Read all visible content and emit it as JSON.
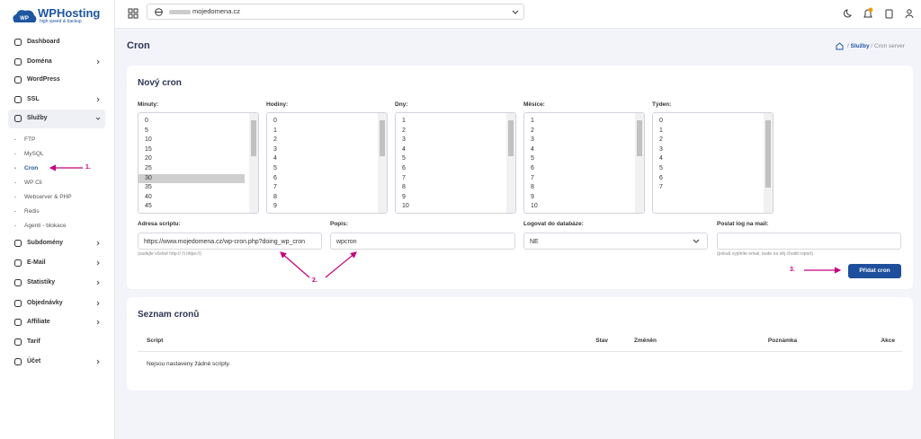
{
  "logo": {
    "title": "WPHosting",
    "tagline": "high speed & backup"
  },
  "sidebar": {
    "items": [
      "Dashboard",
      "Doména",
      "WordPress",
      "SSL",
      "Služby"
    ],
    "subitems": [
      "FTP",
      "MySQL",
      "Cron",
      "WP Cli",
      "Webserver & PHP",
      "Redis",
      "Agenti - blokace"
    ],
    "items_after": [
      "Subdomény",
      "E-Mail",
      "Statistiky",
      "Objednávky",
      "Affiliate",
      "Tarif",
      "Účet"
    ]
  },
  "topbar": {
    "domain": "mojedomena.cz"
  },
  "header": {
    "title": "Cron",
    "breadcrumb": [
      "Služby",
      "Cron server"
    ]
  },
  "form": {
    "title": "Nový cron",
    "lists": [
      {
        "label": "Minuty:",
        "options": [
          0,
          5,
          10,
          15,
          20,
          25,
          30,
          35,
          40,
          45
        ]
      },
      {
        "label": "Hodiny:",
        "options": [
          0,
          1,
          2,
          3,
          4,
          5,
          6,
          7,
          8,
          9
        ]
      },
      {
        "label": "Dny:",
        "options": [
          1,
          2,
          3,
          4,
          5,
          6,
          7,
          8,
          9,
          10
        ]
      },
      {
        "label": "Měsíce:",
        "options": [
          1,
          2,
          3,
          4,
          5,
          6,
          7,
          8,
          9,
          10
        ]
      },
      {
        "label": "Týden:",
        "options": [
          0,
          1,
          2,
          3,
          4,
          5,
          6,
          7
        ]
      }
    ],
    "fields": [
      {
        "label": "Adresa scriptu:",
        "value": "https://www.mojedomena.cz/wp-cron.php?doing_wp_cron",
        "hint": "(zadejte včetně http:// či https://)"
      },
      {
        "label": "Popis:",
        "value": "wpcron"
      },
      {
        "label": "Logovat do databáze:",
        "value": "NE"
      },
      {
        "label": "Poslat log na mail:",
        "hint": "(pokud vyplníte email, bude na něj chodit report)"
      }
    ],
    "button": "Přidat cron"
  },
  "table": {
    "title": "Seznam cronů",
    "columns": [
      "Script",
      "Stav",
      "Změněn",
      "Poznámka",
      "Akce"
    ],
    "empty": "Nejsou nastaveny žádné scripty."
  },
  "annotations": [
    "1.",
    "2.",
    "3."
  ]
}
